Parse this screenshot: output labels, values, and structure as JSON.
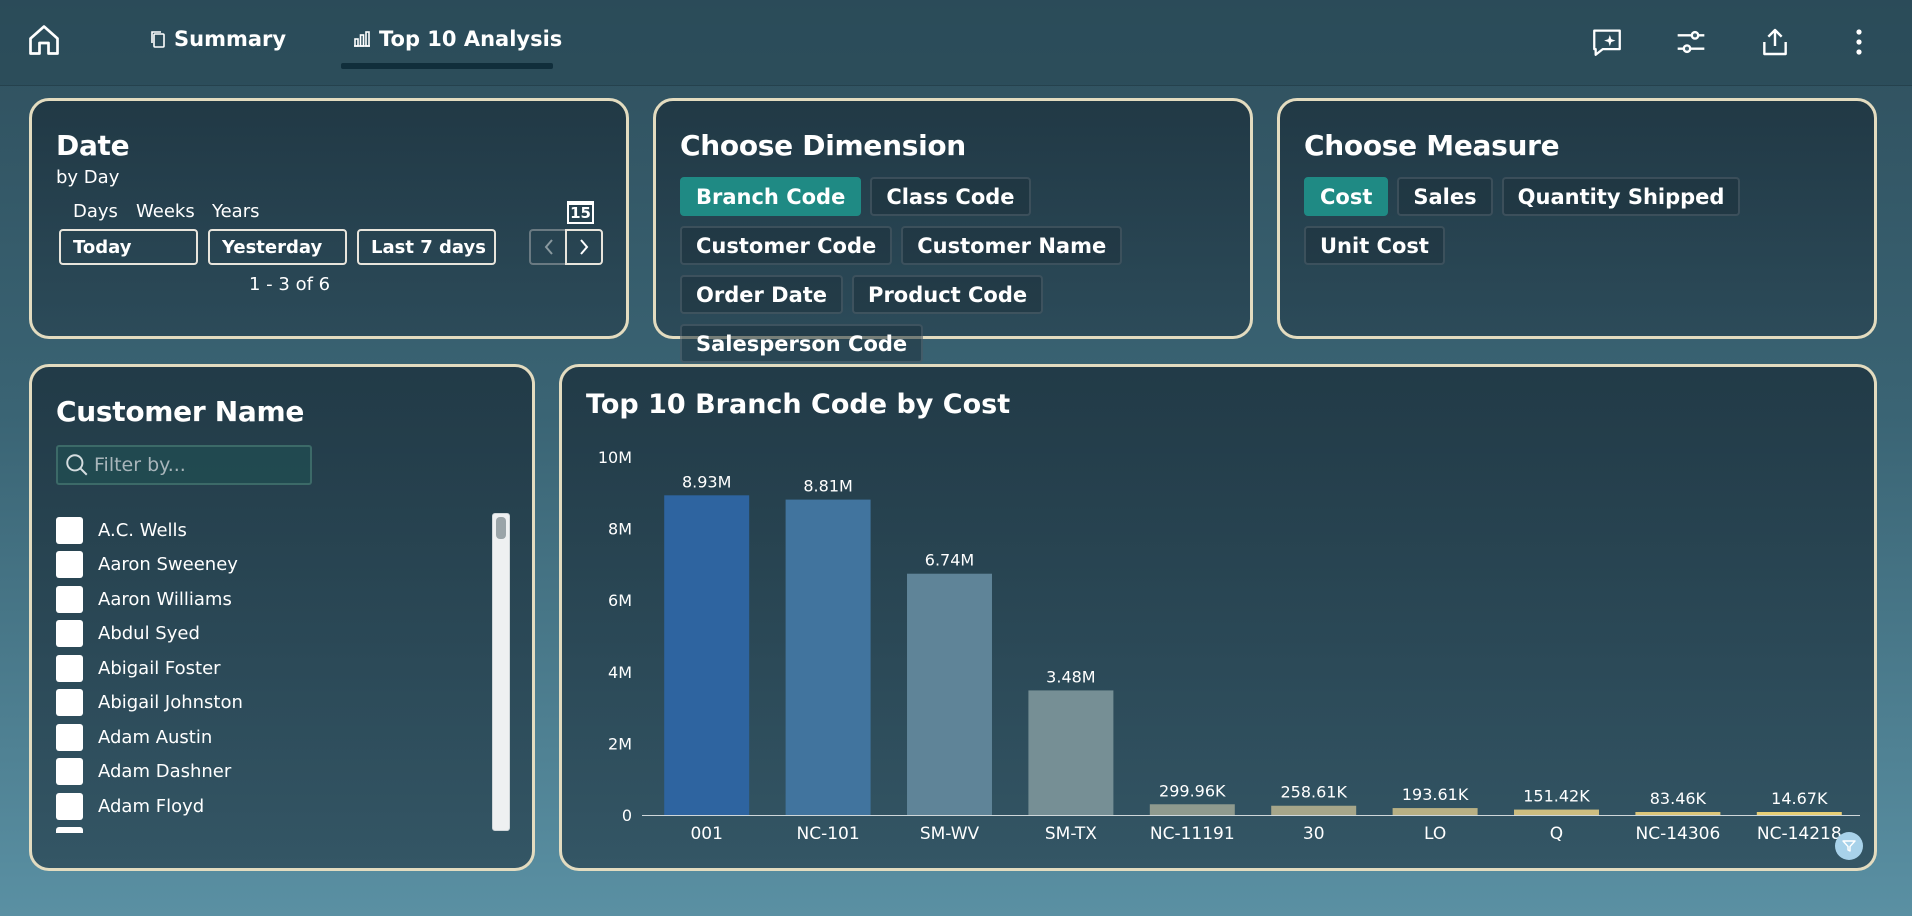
{
  "tabs": [
    {
      "label": "Summary",
      "icon": "copy-icon"
    },
    {
      "label": "Top 10 Analysis",
      "icon": "bar-chart-icon",
      "active": true
    }
  ],
  "toolbar": {
    "icons": [
      "ai-chat-sparkle-icon",
      "sliders-icon",
      "share-icon",
      "more-vertical-icon"
    ]
  },
  "date": {
    "title": "Date",
    "subtitle": "by Day",
    "granularity": [
      "Days",
      "Weeks",
      "Years"
    ],
    "quick": [
      "Today",
      "Yesterday",
      "Last 7 days"
    ],
    "calendar_day": "15",
    "page_info": "1 - 3 of 6"
  },
  "dimension": {
    "title": "Choose Dimension",
    "options": [
      "Branch Code",
      "Class Code",
      "Customer Code",
      "Customer Name",
      "Order Date",
      "Product Code",
      "Salesperson Code"
    ],
    "selected": "Branch Code"
  },
  "measure": {
    "title": "Choose Measure",
    "options": [
      "Cost",
      "Sales",
      "Quantity Shipped",
      "Unit Cost"
    ],
    "selected": "Cost"
  },
  "customer": {
    "title": "Customer Name",
    "filter_placeholder": "Filter by...",
    "items": [
      "A.C. Wells",
      "Aaron Sweeney",
      "Aaron Williams",
      "Abdul Syed",
      "Abigail Foster",
      "Abigail Johnston",
      "Adam Austin",
      "Adam Dashner",
      "Adam Floyd"
    ]
  },
  "chart_data": {
    "type": "bar",
    "title": "Top 10 Branch Code by Cost",
    "categories": [
      "001",
      "NC-101",
      "SM-WV",
      "SM-TX",
      "NC-11191",
      "30",
      "LO",
      "Q",
      "NC-14306",
      "NC-14218"
    ],
    "values": [
      8930000,
      8810000,
      6740000,
      3480000,
      299960,
      258610,
      193610,
      151420,
      83460,
      14670
    ],
    "data_labels": [
      "8.93M",
      "8.81M",
      "6.74M",
      "3.48M",
      "299.96K",
      "258.61K",
      "193.61K",
      "151.42K",
      "83.46K",
      "14.67K"
    ],
    "colors": [
      "#2e64a0",
      "#41749e",
      "#5f8498",
      "#768f95",
      "#8f9a8e",
      "#a6a68a",
      "#b8b084",
      "#ccbd80",
      "#dcc67a",
      "#e8cf76"
    ],
    "y_ticks": [
      {
        "value": 0,
        "label": "0"
      },
      {
        "value": 2000000,
        "label": "2M"
      },
      {
        "value": 4000000,
        "label": "4M"
      },
      {
        "value": 6000000,
        "label": "6M"
      },
      {
        "value": 8000000,
        "label": "8M"
      },
      {
        "value": 10000000,
        "label": "10M"
      }
    ],
    "ylim": [
      0,
      10000000
    ],
    "xlabel": "",
    "ylabel": "",
    "grid": false
  }
}
